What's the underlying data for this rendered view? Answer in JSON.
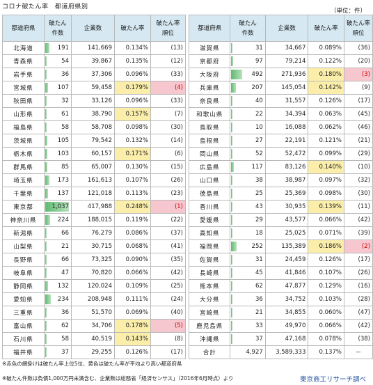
{
  "title": "コロナ破たん率　都道府県別",
  "unit": "（単位：件）",
  "headers": {
    "pref": "都道府県",
    "count1": "破たん",
    "count2": "件数",
    "companies": "企業数",
    "rate": "破たん率",
    "rank1": "破たん率",
    "rank2": "順位"
  },
  "left_rows": [
    {
      "pref": "北海道",
      "count": "191",
      "companies": "141,669",
      "rate": "0.134%",
      "rank": "(13)"
    },
    {
      "pref": "青森県",
      "count": "54",
      "companies": "39,867",
      "rate": "0.135%",
      "rank": "(12)"
    },
    {
      "pref": "岩手県",
      "count": "36",
      "companies": "37,306",
      "rate": "0.096%",
      "rank": "(33)"
    },
    {
      "pref": "宮城県",
      "count": "107",
      "companies": "59,458",
      "rate": "0.179%",
      "rank": "(4)"
    },
    {
      "pref": "秋田県",
      "count": "32",
      "companies": "33,126",
      "rate": "0.096%",
      "rank": "(33)"
    },
    {
      "pref": "山形県",
      "count": "61",
      "companies": "38,790",
      "rate": "0.157%",
      "rank": "(7)"
    },
    {
      "pref": "福島県",
      "count": "58",
      "companies": "58,708",
      "rate": "0.098%",
      "rank": "(30)"
    },
    {
      "pref": "茨城県",
      "count": "105",
      "companies": "79,542",
      "rate": "0.132%",
      "rank": "(14)"
    },
    {
      "pref": "栃木県",
      "count": "103",
      "companies": "60,157",
      "rate": "0.171%",
      "rank": "(6)"
    },
    {
      "pref": "群馬県",
      "count": "85",
      "companies": "65,007",
      "rate": "0.130%",
      "rank": "(15)"
    },
    {
      "pref": "埼玉県",
      "count": "173",
      "companies": "161,613",
      "rate": "0.107%",
      "rank": "(26)"
    },
    {
      "pref": "千葉県",
      "count": "137",
      "companies": "121,018",
      "rate": "0.113%",
      "rank": "(23)"
    },
    {
      "pref": "東京都",
      "count": "1,037",
      "companies": "417,988",
      "rate": "0.248%",
      "rank": "(1)"
    },
    {
      "pref": "神奈川県",
      "count": "224",
      "companies": "188,015",
      "rate": "0.119%",
      "rank": "(22)"
    },
    {
      "pref": "新潟県",
      "count": "66",
      "companies": "76,279",
      "rate": "0.086%",
      "rank": "(37)"
    },
    {
      "pref": "山梨県",
      "count": "21",
      "companies": "30,715",
      "rate": "0.068%",
      "rank": "(41)"
    },
    {
      "pref": "長野県",
      "count": "66",
      "companies": "73,325",
      "rate": "0.090%",
      "rank": "(35)"
    },
    {
      "pref": "岐阜県",
      "count": "47",
      "companies": "70,820",
      "rate": "0.066%",
      "rank": "(42)"
    },
    {
      "pref": "静岡県",
      "count": "132",
      "companies": "120,024",
      "rate": "0.109%",
      "rank": "(25)"
    },
    {
      "pref": "愛知県",
      "count": "234",
      "companies": "208,948",
      "rate": "0.111%",
      "rank": "(24)"
    },
    {
      "pref": "三重県",
      "count": "36",
      "companies": "51,570",
      "rate": "0.069%",
      "rank": "(40)"
    },
    {
      "pref": "富山県",
      "count": "62",
      "companies": "34,706",
      "rate": "0.178%",
      "rank": "(5)"
    },
    {
      "pref": "石川県",
      "count": "58",
      "companies": "40,519",
      "rate": "0.143%",
      "rank": "(8)"
    },
    {
      "pref": "福井県",
      "count": "37",
      "companies": "29,255",
      "rate": "0.126%",
      "rank": "(17)"
    }
  ],
  "right_rows": [
    {
      "pref": "滋賀県",
      "count": "31",
      "companies": "34,667",
      "rate": "0.089%",
      "rank": "(36)"
    },
    {
      "pref": "京都府",
      "count": "97",
      "companies": "79,214",
      "rate": "0.122%",
      "rank": "(20)"
    },
    {
      "pref": "大阪府",
      "count": "492",
      "companies": "271,936",
      "rate": "0.180%",
      "rank": "(3)"
    },
    {
      "pref": "兵庫県",
      "count": "207",
      "companies": "145,054",
      "rate": "0.142%",
      "rank": "(9)"
    },
    {
      "pref": "奈良県",
      "count": "40",
      "companies": "31,557",
      "rate": "0.126%",
      "rank": "(17)"
    },
    {
      "pref": "和歌山県",
      "count": "22",
      "companies": "34,394",
      "rate": "0.063%",
      "rank": "(45)"
    },
    {
      "pref": "鳥取県",
      "count": "10",
      "companies": "16,088",
      "rate": "0.062%",
      "rank": "(46)"
    },
    {
      "pref": "島根県",
      "count": "27",
      "companies": "22,191",
      "rate": "0.121%",
      "rank": "(21)"
    },
    {
      "pref": "岡山県",
      "count": "52",
      "companies": "52,472",
      "rate": "0.099%",
      "rank": "(29)"
    },
    {
      "pref": "広島県",
      "count": "117",
      "companies": "83,126",
      "rate": "0.140%",
      "rank": "(10)"
    },
    {
      "pref": "山口県",
      "count": "38",
      "companies": "38,987",
      "rate": "0.097%",
      "rank": "(32)"
    },
    {
      "pref": "徳島県",
      "count": "25",
      "companies": "25,369",
      "rate": "0.098%",
      "rank": "(30)"
    },
    {
      "pref": "香川県",
      "count": "43",
      "companies": "30,935",
      "rate": "0.139%",
      "rank": "(11)"
    },
    {
      "pref": "愛媛県",
      "count": "29",
      "companies": "43,577",
      "rate": "0.066%",
      "rank": "(42)"
    },
    {
      "pref": "高知県",
      "count": "18",
      "companies": "25,025",
      "rate": "0.071%",
      "rank": "(39)"
    },
    {
      "pref": "福岡県",
      "count": "252",
      "companies": "135,389",
      "rate": "0.186%",
      "rank": "(2)"
    },
    {
      "pref": "佐賀県",
      "count": "31",
      "companies": "24,459",
      "rate": "0.126%",
      "rank": "(17)"
    },
    {
      "pref": "長崎県",
      "count": "45",
      "companies": "41,846",
      "rate": "0.107%",
      "rank": "(26)"
    },
    {
      "pref": "熊本県",
      "count": "62",
      "companies": "47,877",
      "rate": "0.129%",
      "rank": "(16)"
    },
    {
      "pref": "大分県",
      "count": "36",
      "companies": "34,752",
      "rate": "0.103%",
      "rank": "(28)"
    },
    {
      "pref": "宮崎県",
      "count": "21",
      "companies": "34,855",
      "rate": "0.060%",
      "rank": "(47)"
    },
    {
      "pref": "鹿児島県",
      "count": "33",
      "companies": "49,970",
      "rate": "0.066%",
      "rank": "(42)"
    },
    {
      "pref": "沖縄県",
      "count": "37",
      "companies": "47,168",
      "rate": "0.078%",
      "rank": "(38)"
    },
    {
      "pref": "合計",
      "count": "4,927",
      "companies": "3,589,333",
      "rate": "0.137%",
      "rank": "－"
    }
  ],
  "notes": [
    "※赤色の網掛けは破たん率上位5位、黄色は破たん率が平均より高い都道府県",
    "※破たん件数は負債1,000万円未満含む、企業数は総務省「経済センサス」（2016年6月時点）より"
  ],
  "credit": "東京商工リサーチ調べ",
  "max_count": 1037,
  "colors": {
    "bar": "#5dba6f",
    "header_bg": "#d6e9f3",
    "highlight_yellow": "#fbeeaa",
    "highlight_pink": "#f7c7cf",
    "rank_red": "#d10000",
    "credit_blue": "#1f4e9d"
  }
}
